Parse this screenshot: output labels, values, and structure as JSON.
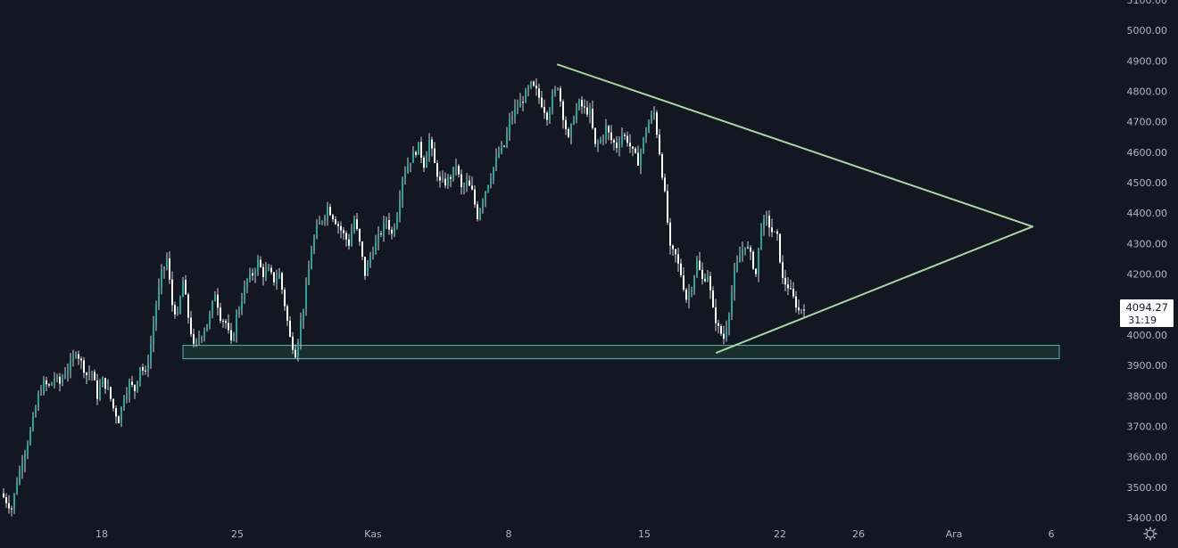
{
  "colors": {
    "background": "#131722",
    "text": "#b2b5be",
    "candle_up": "#26a69a",
    "candle_down": "#ffffff",
    "wick": "#cfd3da",
    "trendline": "#a8d8a0",
    "zone_fill": "#1c3a33",
    "zone_border": "#4db6ac",
    "badge_bg": "#ffffff",
    "badge_text": "#131722"
  },
  "settings_icon": "gear-icon",
  "chart_data": {
    "type": "candlestick",
    "y_axis": {
      "ticks": [
        "5100.00",
        "5000.00",
        "4900.00",
        "4800.00",
        "4700.00",
        "4600.00",
        "4500.00",
        "4400.00",
        "4300.00",
        "4200.00",
        "4100.00",
        "4000.00",
        "3900.00",
        "3800.00",
        "3700.00",
        "3600.00",
        "3500.00",
        "3400.00"
      ],
      "ylim": [
        3400,
        5100
      ]
    },
    "x_axis": {
      "ticks": [
        "18",
        "25",
        "Kas",
        "8",
        "15",
        "22",
        "26",
        "Ara",
        "6"
      ]
    },
    "last_price": "4094.27",
    "countdown": "31:19",
    "close_path": [
      [
        0,
        3480
      ],
      [
        6,
        3455
      ],
      [
        12,
        3430
      ],
      [
        18,
        3520
      ],
      [
        24,
        3590
      ],
      [
        30,
        3650
      ],
      [
        36,
        3720
      ],
      [
        42,
        3800
      ],
      [
        48,
        3840
      ],
      [
        54,
        3830
      ],
      [
        60,
        3860
      ],
      [
        66,
        3840
      ],
      [
        72,
        3880
      ],
      [
        78,
        3900
      ],
      [
        84,
        3950
      ],
      [
        90,
        3910
      ],
      [
        96,
        3870
      ],
      [
        102,
        3880
      ],
      [
        108,
        3800
      ],
      [
        114,
        3850
      ],
      [
        120,
        3820
      ],
      [
        126,
        3760
      ],
      [
        132,
        3720
      ],
      [
        138,
        3800
      ],
      [
        144,
        3840
      ],
      [
        150,
        3820
      ],
      [
        156,
        3900
      ],
      [
        162,
        3870
      ],
      [
        168,
        3970
      ],
      [
        174,
        4100
      ],
      [
        180,
        4200
      ],
      [
        186,
        4250
      ],
      [
        192,
        4100
      ],
      [
        198,
        4060
      ],
      [
        204,
        4180
      ],
      [
        210,
        4060
      ],
      [
        216,
        3960
      ],
      [
        222,
        3990
      ],
      [
        228,
        4020
      ],
      [
        234,
        4060
      ],
      [
        240,
        4140
      ],
      [
        246,
        4060
      ],
      [
        252,
        4040
      ],
      [
        258,
        3970
      ],
      [
        264,
        4060
      ],
      [
        270,
        4120
      ],
      [
        276,
        4180
      ],
      [
        282,
        4200
      ],
      [
        288,
        4240
      ],
      [
        294,
        4200
      ],
      [
        300,
        4210
      ],
      [
        306,
        4180
      ],
      [
        312,
        4200
      ],
      [
        318,
        4100
      ],
      [
        324,
        3990
      ],
      [
        330,
        3940
      ],
      [
        336,
        4040
      ],
      [
        342,
        4150
      ],
      [
        348,
        4280
      ],
      [
        354,
        4350
      ],
      [
        360,
        4380
      ],
      [
        366,
        4420
      ],
      [
        372,
        4390
      ],
      [
        378,
        4360
      ],
      [
        384,
        4330
      ],
      [
        390,
        4300
      ],
      [
        396,
        4380
      ],
      [
        402,
        4300
      ],
      [
        408,
        4200
      ],
      [
        414,
        4260
      ],
      [
        420,
        4300
      ],
      [
        426,
        4340
      ],
      [
        432,
        4380
      ],
      [
        438,
        4330
      ],
      [
        444,
        4400
      ],
      [
        450,
        4520
      ],
      [
        456,
        4560
      ],
      [
        462,
        4590
      ],
      [
        468,
        4620
      ],
      [
        474,
        4560
      ],
      [
        480,
        4640
      ],
      [
        486,
        4560
      ],
      [
        492,
        4500
      ],
      [
        498,
        4500
      ],
      [
        504,
        4520
      ],
      [
        510,
        4560
      ],
      [
        516,
        4480
      ],
      [
        522,
        4500
      ],
      [
        528,
        4470
      ],
      [
        534,
        4390
      ],
      [
        540,
        4450
      ],
      [
        546,
        4500
      ],
      [
        552,
        4550
      ],
      [
        558,
        4600
      ],
      [
        564,
        4620
      ],
      [
        570,
        4700
      ],
      [
        576,
        4740
      ],
      [
        582,
        4760
      ],
      [
        588,
        4790
      ],
      [
        594,
        4820
      ],
      [
        600,
        4800
      ],
      [
        606,
        4760
      ],
      [
        612,
        4720
      ],
      [
        618,
        4780
      ],
      [
        624,
        4820
      ],
      [
        630,
        4720
      ],
      [
        636,
        4640
      ],
      [
        642,
        4720
      ],
      [
        648,
        4760
      ],
      [
        654,
        4740
      ],
      [
        660,
        4730
      ],
      [
        666,
        4620
      ],
      [
        672,
        4640
      ],
      [
        678,
        4680
      ],
      [
        684,
        4640
      ],
      [
        690,
        4620
      ],
      [
        696,
        4660
      ],
      [
        702,
        4640
      ],
      [
        708,
        4600
      ],
      [
        714,
        4570
      ],
      [
        720,
        4640
      ],
      [
        726,
        4700
      ],
      [
        732,
        4730
      ],
      [
        738,
        4600
      ],
      [
        744,
        4460
      ],
      [
        750,
        4280
      ],
      [
        756,
        4260
      ],
      [
        762,
        4200
      ],
      [
        768,
        4120
      ],
      [
        774,
        4160
      ],
      [
        780,
        4240
      ],
      [
        786,
        4180
      ],
      [
        792,
        4200
      ],
      [
        798,
        4080
      ],
      [
        804,
        4020
      ],
      [
        810,
        3990
      ],
      [
        816,
        4080
      ],
      [
        822,
        4200
      ],
      [
        828,
        4260
      ],
      [
        834,
        4300
      ],
      [
        840,
        4260
      ],
      [
        846,
        4200
      ],
      [
        852,
        4360
      ],
      [
        858,
        4380
      ],
      [
        864,
        4340
      ],
      [
        870,
        4320
      ],
      [
        876,
        4180
      ],
      [
        882,
        4160
      ],
      [
        888,
        4120
      ],
      [
        894,
        4080
      ],
      [
        900,
        4094
      ]
    ],
    "zone": {
      "y_low": 3922,
      "y_high": 3966,
      "x_start": 205,
      "x_end": 1187
    },
    "trendlines": [
      {
        "from": [
          625,
          4888
        ],
        "to": [
          1157,
          4356
        ]
      },
      {
        "from": [
          803,
          3942
        ],
        "to": [
          1157,
          4356
        ]
      }
    ]
  }
}
